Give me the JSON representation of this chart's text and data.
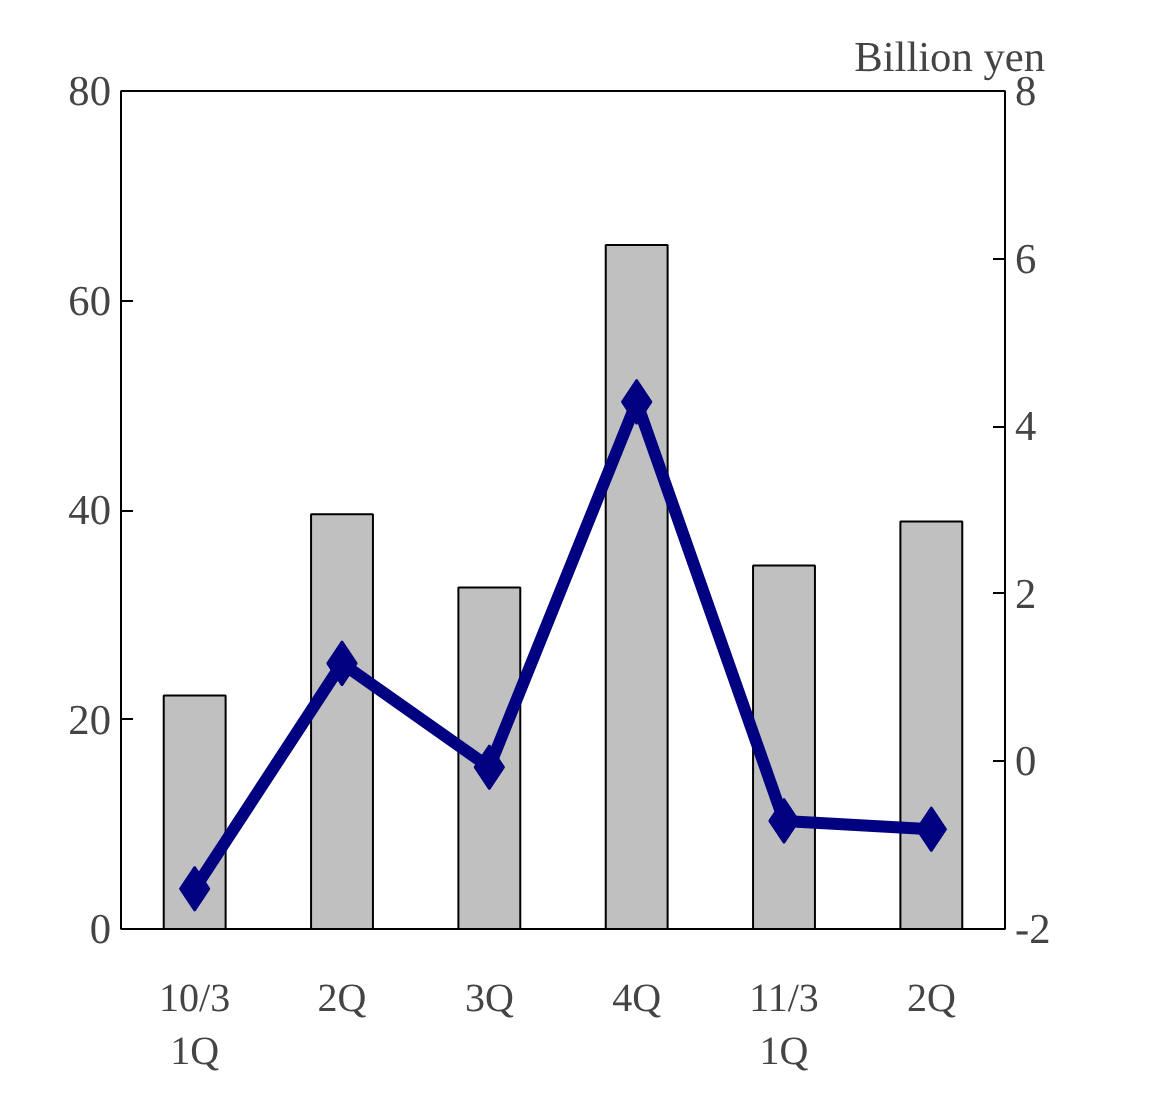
{
  "chart_data": {
    "type": "bar",
    "y2label": "Billion yen",
    "categories": [
      "10/3\n1Q",
      "2Q",
      "3Q",
      "4Q",
      "11/3\n1Q",
      "2Q"
    ],
    "series": [
      {
        "color": "#c0c0c0",
        "values": [
          22.3,
          39.6,
          32.6,
          65.3,
          34.7,
          38.9
        ]
      },
      {
        "type": "line",
        "axis": "y2",
        "color": "#000080",
        "marker": "diamond",
        "values": [
          -1.52,
          1.17,
          -0.07,
          4.29,
          -0.71,
          -0.81
        ]
      }
    ],
    "ylim": [
      0,
      80
    ],
    "yticks": [
      0,
      20,
      40,
      60,
      80
    ],
    "y2lim": [
      -2,
      8
    ],
    "y2ticks": [
      -2,
      0,
      2,
      4,
      6,
      8
    ],
    "grid": false
  }
}
